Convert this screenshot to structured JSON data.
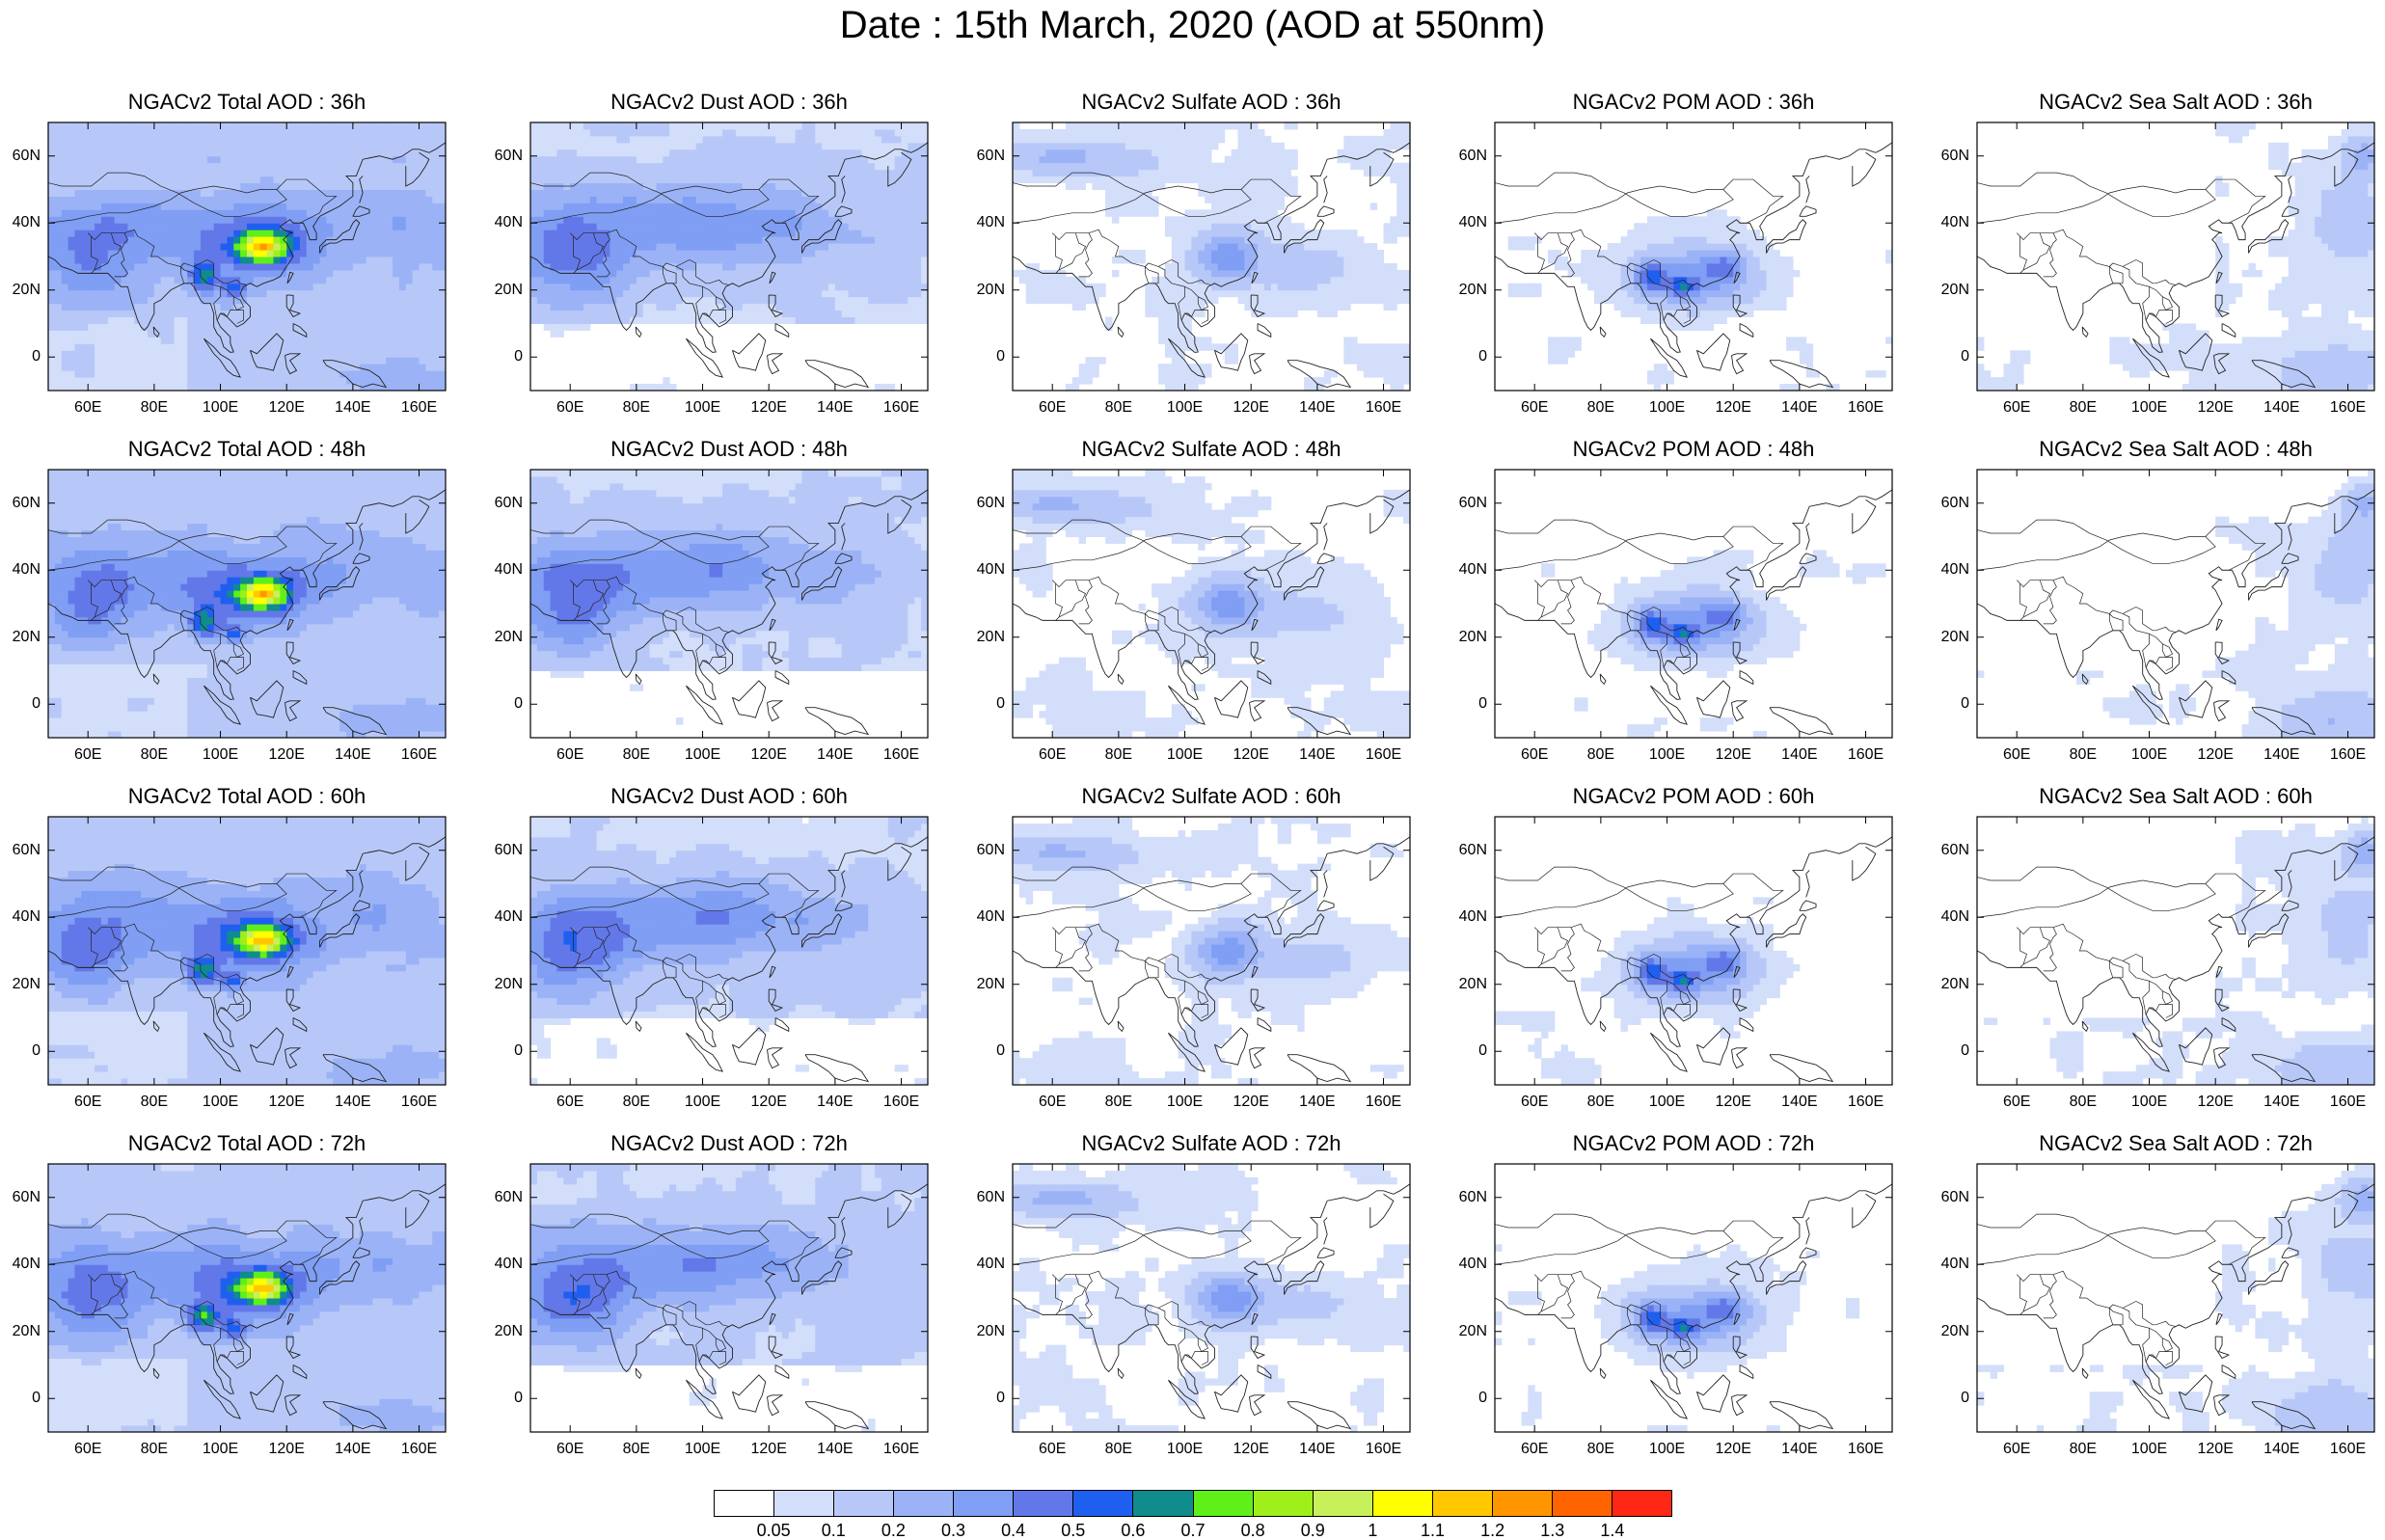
{
  "title": "Date : 15th March, 2020 (AOD at 550nm)",
  "panels": [
    {
      "title": "NGACv2 Total AOD : 36h",
      "species": "total"
    },
    {
      "title": "NGACv2 Dust AOD : 36h",
      "species": "dust"
    },
    {
      "title": "NGACv2 Sulfate AOD : 36h",
      "species": "sulfate"
    },
    {
      "title": "NGACv2 POM AOD : 36h",
      "species": "pom"
    },
    {
      "title": "NGACv2 Sea Salt AOD : 36h",
      "species": "seasalt"
    },
    {
      "title": "NGACv2 Total AOD : 48h",
      "species": "total"
    },
    {
      "title": "NGACv2 Dust AOD : 48h",
      "species": "dust"
    },
    {
      "title": "NGACv2 Sulfate AOD : 48h",
      "species": "sulfate"
    },
    {
      "title": "NGACv2 POM AOD : 48h",
      "species": "pom"
    },
    {
      "title": "NGACv2 Sea Salt AOD : 48h",
      "species": "seasalt"
    },
    {
      "title": "NGACv2 Total AOD : 60h",
      "species": "total"
    },
    {
      "title": "NGACv2 Dust AOD : 60h",
      "species": "dust"
    },
    {
      "title": "NGACv2 Sulfate AOD : 60h",
      "species": "sulfate"
    },
    {
      "title": "NGACv2 POM AOD : 60h",
      "species": "pom"
    },
    {
      "title": "NGACv2 Sea Salt AOD : 60h",
      "species": "seasalt"
    },
    {
      "title": "NGACv2 Total AOD : 72h",
      "species": "total"
    },
    {
      "title": "NGACv2 Dust AOD : 72h",
      "species": "dust"
    },
    {
      "title": "NGACv2 Sulfate AOD : 72h",
      "species": "sulfate"
    },
    {
      "title": "NGACv2 POM AOD : 72h",
      "species": "pom"
    },
    {
      "title": "NGACv2 Sea Salt  AOD : 72h",
      "species": "seasalt"
    }
  ],
  "axes": {
    "lon_ticks": [
      "60E",
      "80E",
      "100E",
      "120E",
      "140E",
      "160E"
    ],
    "lat_ticks": [
      "60N",
      "40N",
      "20N",
      "0"
    ],
    "lon_range": [
      48,
      168
    ],
    "lat_range": [
      -10,
      70
    ]
  },
  "colorbar": {
    "labels": [
      "0.05",
      "0.1",
      "0.2",
      "0.3",
      "0.4",
      "0.5",
      "0.6",
      "0.7",
      "0.8",
      "0.9",
      "1",
      "1.1",
      "1.2",
      "1.3",
      "1.4"
    ],
    "colors": [
      "#ffffff",
      "#d3defa",
      "#b7c8f8",
      "#9bb3f6",
      "#7f9ef4",
      "#6378e8",
      "#1f5ff0",
      "#108c8c",
      "#5ff01a",
      "#9ff01a",
      "#c8f05a",
      "#ffff00",
      "#ffc800",
      "#ff9600",
      "#ff6400",
      "#ff2814"
    ]
  }
}
